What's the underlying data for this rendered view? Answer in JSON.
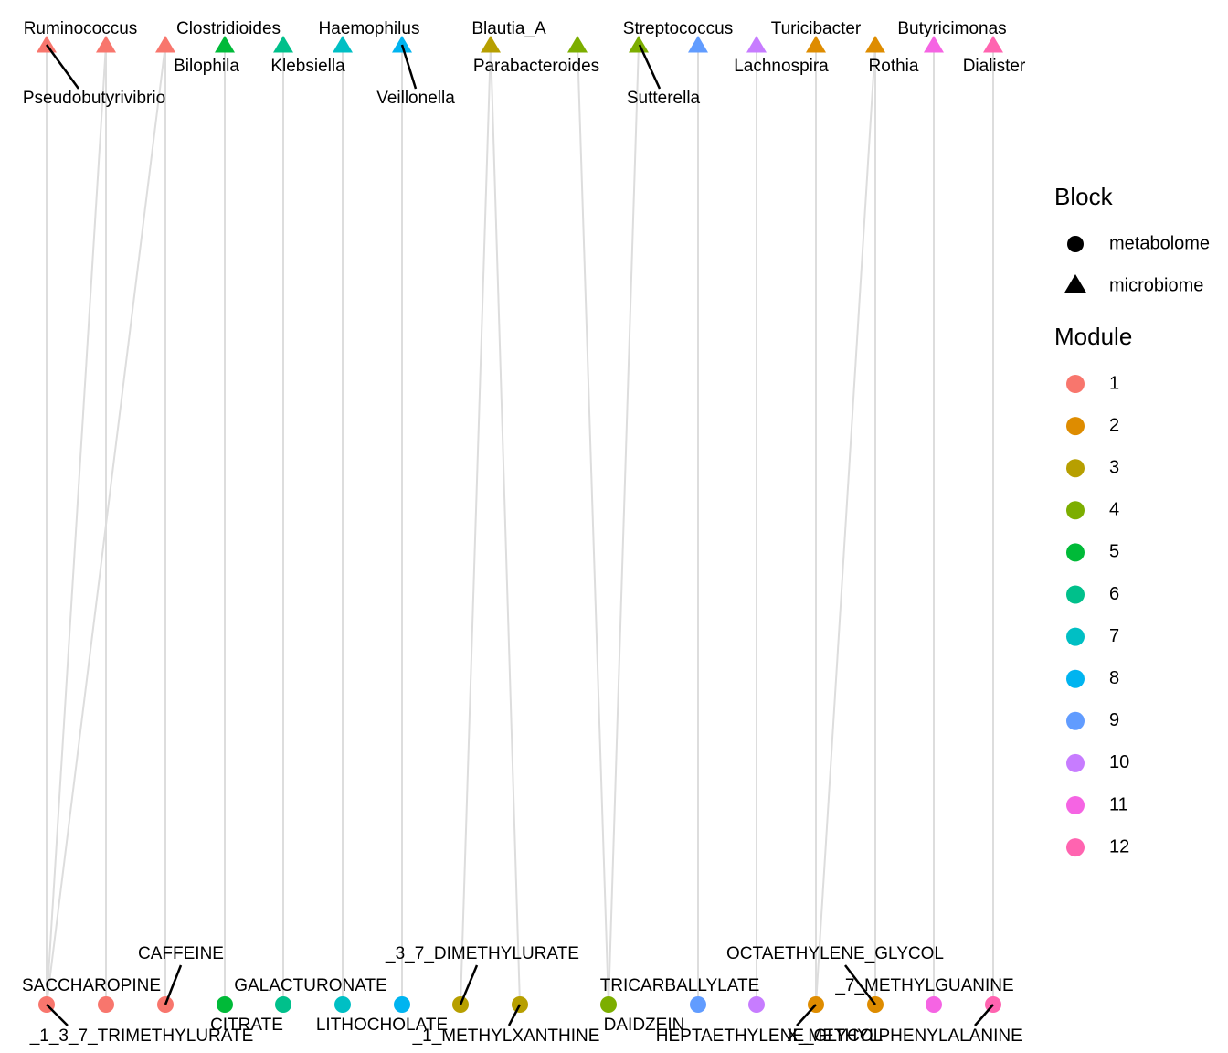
{
  "top_nodes": [
    {
      "label": "Pseudobutyrivibrio",
      "color": "#F8766D"
    },
    {
      "label": "Ruminococcus",
      "color": "#F8766D"
    },
    {
      "label": "Bilophila",
      "color": "#F8766D"
    },
    {
      "label": "Clostridioides",
      "color": "#00BA38"
    },
    {
      "label": "Klebsiella",
      "color": "#00C08B"
    },
    {
      "label": "Haemophilus",
      "color": "#00BFC4"
    },
    {
      "label": "Veillonella",
      "color": "#00B4F0"
    },
    {
      "label": "Blautia_A",
      "color": "#B79F00"
    },
    {
      "label": "Parabacteroides",
      "color": "#7CAE00"
    },
    {
      "label": "Sutterella",
      "color": "#7CAE00"
    },
    {
      "label": "Streptococcus",
      "color": "#619CFF"
    },
    {
      "label": "Lachnospira",
      "color": "#C77CFF"
    },
    {
      "label": "Turicibacter",
      "color": "#DE8C00"
    },
    {
      "label": "Rothia",
      "color": "#DE8C00"
    },
    {
      "label": "Butyricimonas",
      "color": "#F564E3"
    },
    {
      "label": "Dialister",
      "color": "#FF64B0"
    }
  ],
  "bottom_nodes": [
    {
      "label": "_1_3_7_TRIMETHYLURATE",
      "color": "#F8766D"
    },
    {
      "label": "SACCHAROPINE",
      "color": "#F8766D"
    },
    {
      "label": "CAFFEINE",
      "color": "#F8766D"
    },
    {
      "label": "GALACTURONATE",
      "color": "#00BA38"
    },
    {
      "label": "CITRATE",
      "color": "#00C08B"
    },
    {
      "label": null,
      "color": "#00BFC4"
    },
    {
      "label": "LITHOCHOLATE",
      "color": "#00B4F0"
    },
    {
      "label": "_3_7_DIMETHYLURATE",
      "color": "#B79F00"
    },
    {
      "label": "_1_METHYLXANTHINE",
      "color": "#B79F00"
    },
    {
      "label": "DAIDZEIN",
      "color": "#7CAE00"
    },
    {
      "label": "TRICARBALLYLATE",
      "color": "#619CFF"
    },
    {
      "label": null,
      "color": "#C77CFF"
    },
    {
      "label": "HEPTAETHYLENE_GLYCOL",
      "color": "#DE8C00"
    },
    {
      "label": "OCTAETHYLENE_GLYCOL",
      "color": "#DE8C00"
    },
    {
      "label": "_7_METHYLGUANINE",
      "color": "#F564E3"
    },
    {
      "label": "X_METHYLPHENYLALANINE",
      "color": "#FF64B0"
    }
  ],
  "legend": {
    "block": {
      "title": "Block",
      "items": [
        "metabolome",
        "microbiome"
      ]
    },
    "module": {
      "title": "Module",
      "items": [
        {
          "label": "1",
          "color": "#F8766D"
        },
        {
          "label": "2",
          "color": "#DE8C00"
        },
        {
          "label": "3",
          "color": "#B79F00"
        },
        {
          "label": "4",
          "color": "#7CAE00"
        },
        {
          "label": "5",
          "color": "#00BA38"
        },
        {
          "label": "6",
          "color": "#00C08B"
        },
        {
          "label": "7",
          "color": "#00BFC4"
        },
        {
          "label": "8",
          "color": "#00B4F0"
        },
        {
          "label": "9",
          "color": "#619CFF"
        },
        {
          "label": "10",
          "color": "#C77CFF"
        },
        {
          "label": "11",
          "color": "#F564E3"
        },
        {
          "label": "12",
          "color": "#FF64B0"
        }
      ]
    }
  }
}
